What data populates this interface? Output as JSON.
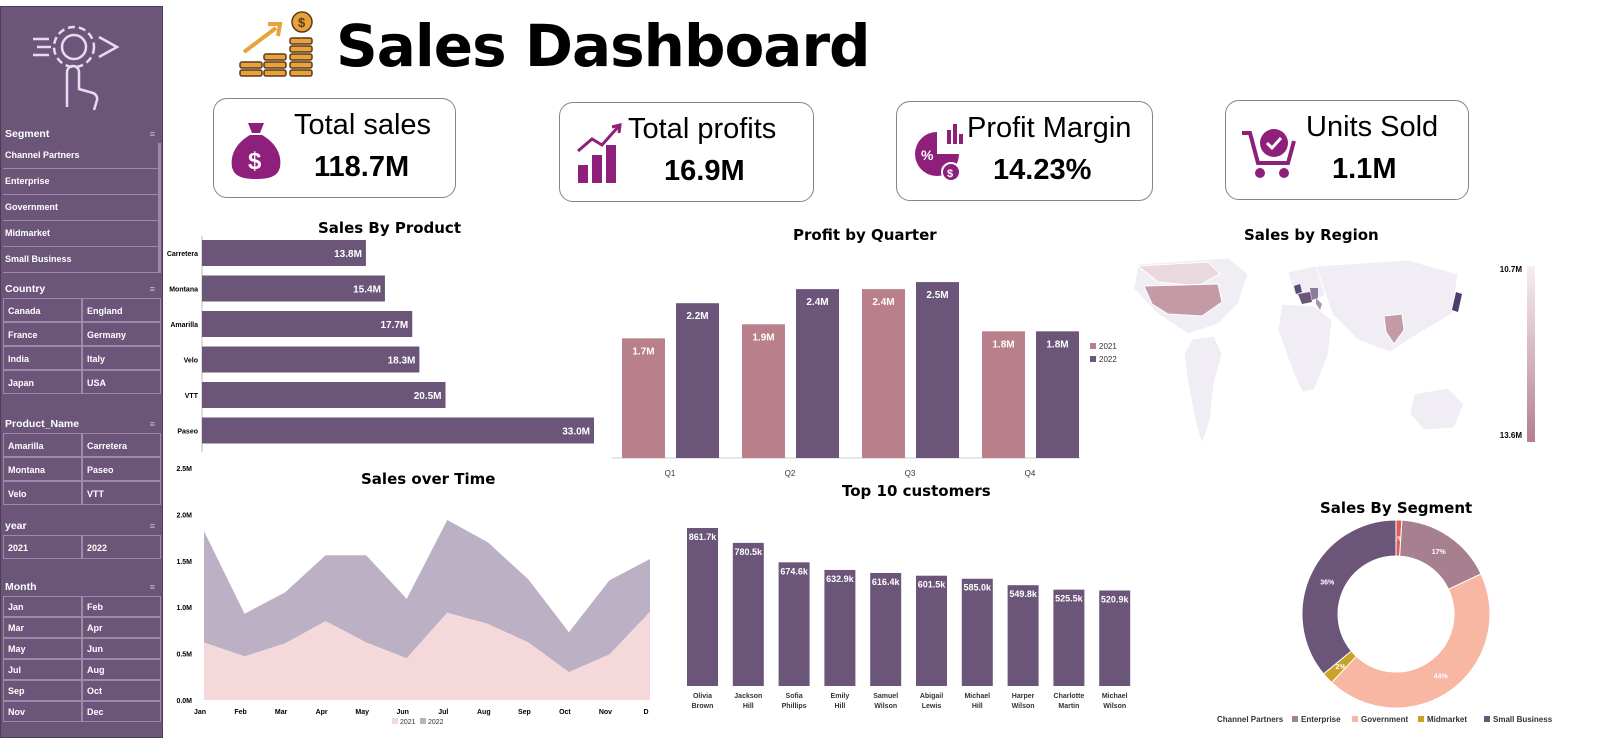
{
  "header": {
    "title": "Sales Dashboard"
  },
  "kpis": {
    "total_sales": {
      "label": "Total sales",
      "value": "118.7M"
    },
    "total_profits": {
      "label": "Total profits",
      "value": "16.9M"
    },
    "profit_margin": {
      "label": "Profit Margin",
      "value": "14.23%"
    },
    "units_sold": {
      "label": "Units Sold",
      "value": "1.1M"
    }
  },
  "slicers": {
    "segment": {
      "title": "Segment",
      "items": [
        "Channel Partners",
        "Enterprise",
        "Government",
        "Midmarket",
        "Small Business"
      ]
    },
    "country": {
      "title": "Country",
      "items": [
        "Canada",
        "England",
        "France",
        "Germany",
        "India",
        "Italy",
        "Japan",
        "USA"
      ]
    },
    "product": {
      "title": "Product_Name",
      "items": [
        "Amarilla",
        "Carretera",
        "Montana",
        "Paseo",
        "Velo",
        "VTT"
      ]
    },
    "year": {
      "title": "year",
      "items": [
        "2021",
        "2022"
      ]
    },
    "month": {
      "title": "Month",
      "items": [
        "Jan",
        "Feb",
        "Mar",
        "Apr",
        "May",
        "Jun",
        "Jul",
        "Aug",
        "Sep",
        "Oct",
        "Nov",
        "Dec"
      ]
    }
  },
  "colors": {
    "purple": "#6b567a",
    "pink": "#b97f8a",
    "light_pink": "#f5d9da",
    "lilac": "#bbb0c4",
    "salmon": "#f7b7a3",
    "red": "#e05a5a",
    "gold": "#c9a227"
  },
  "chart_data": [
    {
      "id": "sales_by_product",
      "type": "bar",
      "orientation": "horizontal",
      "title": "Sales By Product",
      "categories": [
        "Carretera",
        "Montana",
        "Amarilla",
        "Velo",
        "VTT",
        "Paseo"
      ],
      "values": [
        13.8,
        15.4,
        17.7,
        18.3,
        20.5,
        33.0
      ],
      "labels": [
        "13.8M",
        "15.4M",
        "17.7M",
        "18.3M",
        "20.5M",
        "33.0M"
      ],
      "unit": "M"
    },
    {
      "id": "profit_by_quarter",
      "type": "bar",
      "title": "Profit by Quarter",
      "categories": [
        "Q1",
        "Q2",
        "Q3",
        "Q4"
      ],
      "series": [
        {
          "name": "2021",
          "values": [
            1.7,
            1.9,
            2.4,
            1.8
          ],
          "labels": [
            "1.7M",
            "1.9M",
            "2.4M",
            "1.8M"
          ],
          "color": "#b97f8a"
        },
        {
          "name": "2022",
          "values": [
            2.2,
            2.4,
            2.5,
            1.8
          ],
          "labels": [
            "2.2M",
            "2.4M",
            "2.5M",
            "1.8M"
          ],
          "color": "#6b567a"
        }
      ],
      "ylim": [
        0,
        2.7
      ]
    },
    {
      "id": "sales_by_region",
      "type": "map",
      "title": "Sales by Region",
      "scale_max_label": "10.7M",
      "scale_min_label": "13.6M"
    },
    {
      "id": "sales_over_time",
      "type": "area",
      "title": "Sales over Time",
      "categories": [
        "Jan",
        "Feb",
        "Mar",
        "Apr",
        "May",
        "Jun",
        "Jul",
        "Aug",
        "Sep",
        "Oct",
        "Nov",
        "D"
      ],
      "yticks": [
        "0.0M",
        "0.5M",
        "1.0M",
        "1.5M",
        "2.0M",
        "2.5M"
      ],
      "ylim": [
        0,
        2.5
      ],
      "series": [
        {
          "name": "2021",
          "values": [
            0.62,
            0.47,
            0.61,
            0.85,
            0.62,
            0.45,
            0.94,
            0.82,
            0.62,
            0.3,
            0.49,
            0.95
          ],
          "color": "#f5d9da"
        },
        {
          "name": "2022",
          "values": [
            1.2,
            0.46,
            0.55,
            0.71,
            0.94,
            0.64,
            1.0,
            0.88,
            0.68,
            0.43,
            0.8,
            0.57
          ],
          "color": "#bbb0c4"
        }
      ]
    },
    {
      "id": "top_10_customers",
      "type": "bar",
      "title": "Top 10 customers",
      "categories": [
        "Olivia Brown",
        "Jackson Hill",
        "Sofia Phillips",
        "Emily Hill",
        "Samuel Wilson",
        "Abigail Lewis",
        "Michael Hill",
        "Harper Wilson",
        "Charlotte Martin",
        "Michael Wilson"
      ],
      "values": [
        861.7,
        780.5,
        674.6,
        632.9,
        616.4,
        601.5,
        585.0,
        549.8,
        525.5,
        520.9
      ],
      "labels": [
        "861.7k",
        "780.5k",
        "674.6k",
        "632.9k",
        "616.4k",
        "601.5k",
        "585.0k",
        "549.8k",
        "525.5k",
        "520.9k"
      ],
      "ylim": [
        0,
        900
      ]
    },
    {
      "id": "sales_by_segment",
      "type": "pie",
      "title": "Sales By Segment",
      "categories": [
        "Channel Partners",
        "Enterprise",
        "Government",
        "Midmarket",
        "Small Business"
      ],
      "values": [
        1,
        17,
        44,
        2,
        36
      ],
      "labels": [
        "1%",
        "17%",
        "44%",
        "2%",
        "36%"
      ],
      "colors": [
        "#e05a5a",
        "#a6808f",
        "#f7b7a3",
        "#c9a227",
        "#6b567a"
      ]
    }
  ]
}
